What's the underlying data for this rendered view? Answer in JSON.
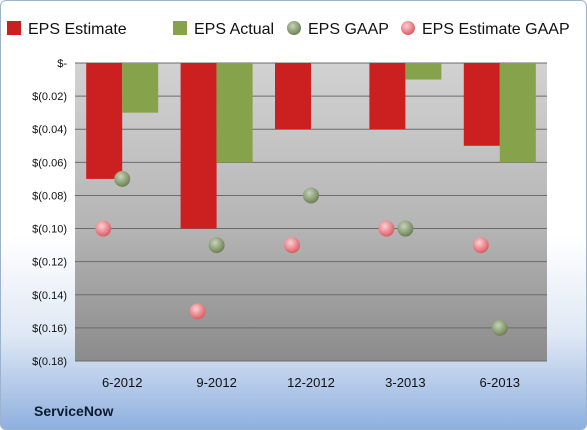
{
  "company": "ServiceNow",
  "chart_data": {
    "type": "bar",
    "categories": [
      "6-2012",
      "9-2012",
      "12-2012",
      "3-2013",
      "6-2013"
    ],
    "series": [
      {
        "name": "EPS Estimate",
        "kind": "bar",
        "color": "#cc1f1f",
        "values": [
          -0.07,
          -0.1,
          -0.04,
          -0.04,
          -0.05
        ]
      },
      {
        "name": "EPS Actual",
        "kind": "bar",
        "color": "#86a24a",
        "values": [
          -0.03,
          -0.06,
          0.0,
          -0.01,
          -0.06
        ]
      },
      {
        "name": "EPS GAAP",
        "kind": "point",
        "color": "#7f9667",
        "values": [
          -0.07,
          -0.11,
          -0.08,
          -0.1,
          -0.16
        ]
      },
      {
        "name": "EPS Estimate GAAP",
        "kind": "point",
        "color": "#e57f86",
        "values": [
          -0.1,
          -0.15,
          -0.11,
          -0.1,
          -0.11
        ]
      }
    ],
    "yticks": [
      "$-",
      "$(0.02)",
      "$(0.04)",
      "$(0.06)",
      "$(0.08)",
      "$(0.10)",
      "$(0.12)",
      "$(0.14)",
      "$(0.16)",
      "$(0.18)"
    ],
    "ylim": [
      -0.18,
      0
    ],
    "grid": true,
    "legend_position": "top"
  }
}
